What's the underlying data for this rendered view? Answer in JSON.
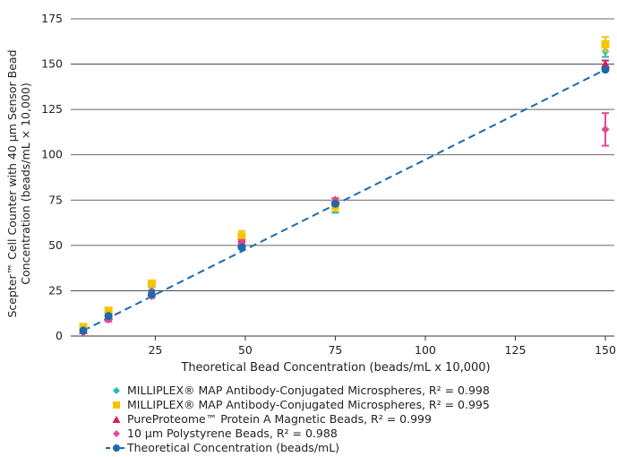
{
  "chart_data": {
    "type": "scatter",
    "title": "",
    "xlabel": "Theoretical Bead Concentration (beads/mL x 10,000)",
    "ylabel_line1": "Scepter™ Cell Counter with 40 µm Sensor Bead",
    "ylabel_line2": "Concentration (beads/mL × 10,000)",
    "xlim": [
      0,
      150
    ],
    "ylim": [
      0,
      175
    ],
    "xticks": [
      "25",
      "50",
      "75",
      "100",
      "125",
      "150"
    ],
    "yticks": [
      "0",
      "25",
      "50",
      "75",
      "100",
      "125",
      "150",
      "175"
    ],
    "grid": "horizontal",
    "legend_position": "bottom",
    "series": [
      {
        "name": "MILLIPLEX® MAP Antibody-Conjugated Microspheres, R² = 0.998",
        "marker": "diamond",
        "color": "#29b6c9",
        "x": [
          5,
          12,
          24,
          49,
          75,
          150
        ],
        "y": [
          4,
          12,
          25,
          50,
          72,
          157
        ],
        "error": [
          1,
          1,
          2,
          2,
          4,
          3
        ]
      },
      {
        "name": "MILLIPLEX® MAP Antibody-Conjugated Microspheres, R² = 0.995",
        "marker": "square",
        "color": "#f5c400",
        "x": [
          5,
          12,
          24,
          49,
          75,
          150
        ],
        "y": [
          5,
          14,
          29,
          55,
          72,
          161
        ],
        "error": [
          1,
          1,
          1,
          3,
          3,
          4
        ]
      },
      {
        "name": "PureProteome™ Protein A Magnetic Beads, R² = 0.999",
        "marker": "triangle",
        "color": "#d3204e",
        "x": [
          5,
          12,
          24,
          49,
          75,
          150
        ],
        "y": [
          3,
          11,
          24,
          51,
          75,
          150
        ],
        "error": [
          0.5,
          1,
          1,
          1,
          1,
          2
        ]
      },
      {
        "name": "10 µm Polystyrene Beads, R² = 0.988",
        "marker": "diamond",
        "color": "#e8449a",
        "x": [
          5,
          12,
          24,
          49,
          75,
          150
        ],
        "y": [
          2,
          9,
          22,
          51,
          74,
          114
        ],
        "error": [
          0.5,
          1,
          1,
          2,
          2,
          9
        ]
      },
      {
        "name": "Theoretical Concentration (beads/mL)",
        "marker": "circle",
        "color": "#1b6aaa",
        "line": "dashed",
        "x": [
          5,
          12,
          24,
          49,
          75,
          150
        ],
        "y": [
          3,
          11,
          23,
          49,
          73,
          147
        ]
      }
    ]
  }
}
